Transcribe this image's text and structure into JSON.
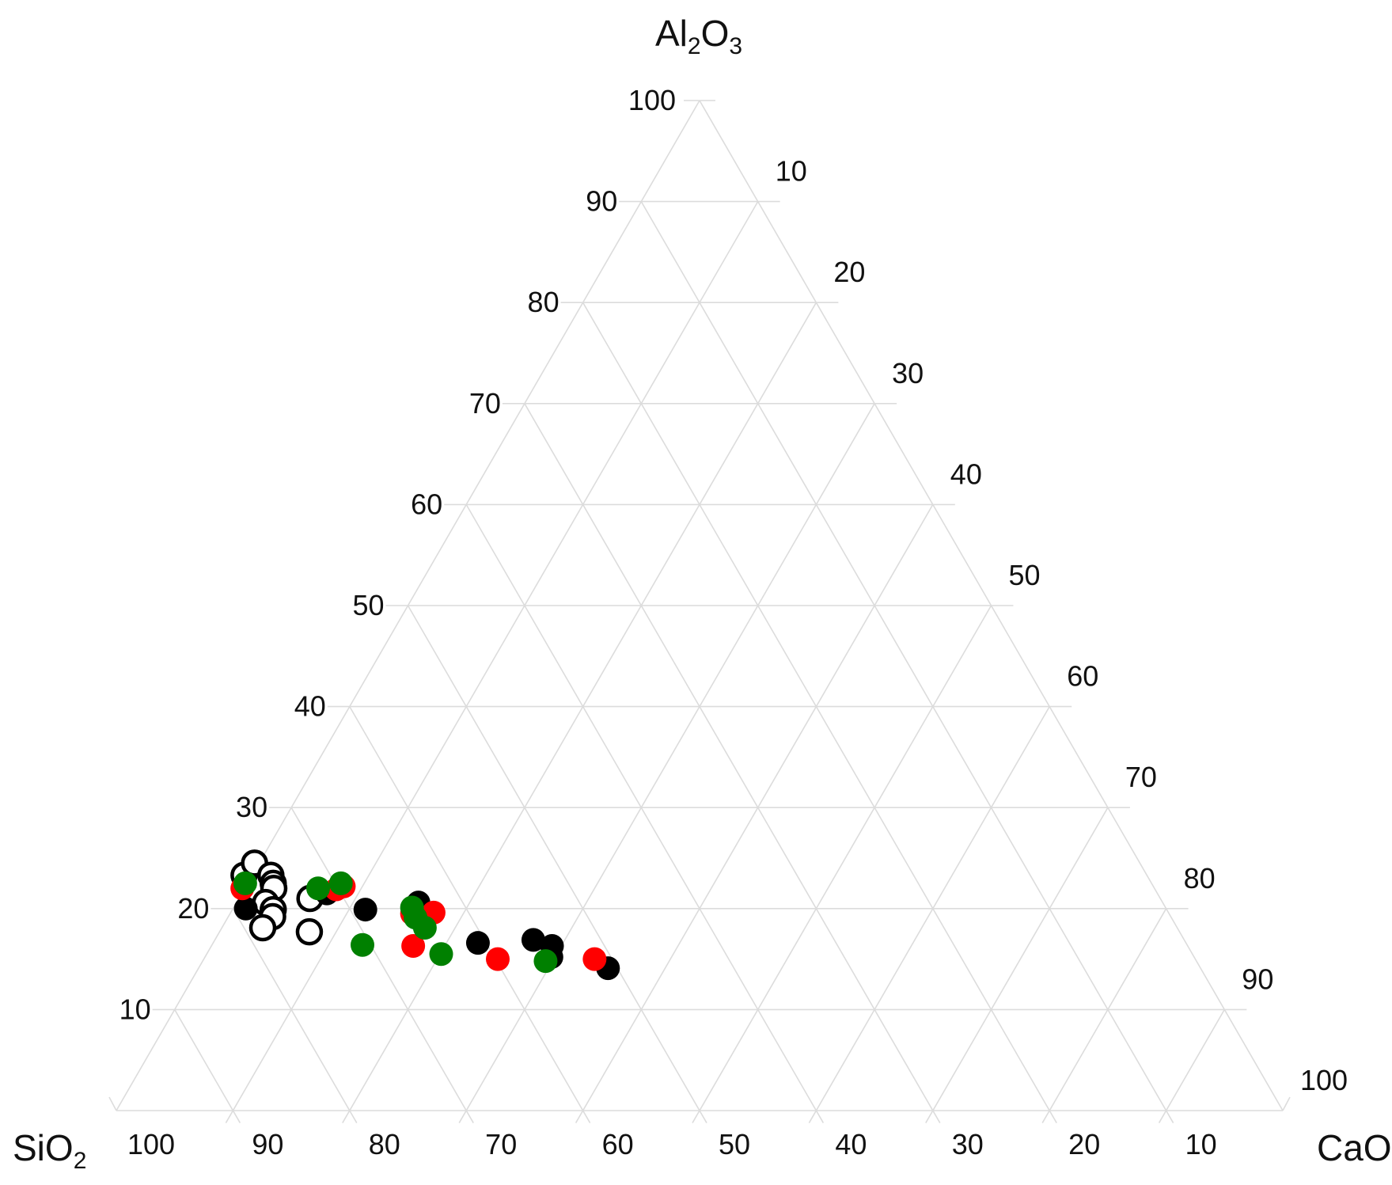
{
  "chart_data": {
    "type": "scatter",
    "subtype": "ternary",
    "apices": {
      "top": {
        "base": "Al",
        "sub1": "2",
        "mid": "O",
        "sub2": "3"
      },
      "left": {
        "base": "SiO",
        "sub1": "2"
      },
      "right": {
        "base": "CaO"
      }
    },
    "ticks": {
      "al2o3": [
        "10",
        "20",
        "30",
        "40",
        "50",
        "60",
        "70",
        "80",
        "90",
        "100"
      ],
      "cao_side": [
        "10",
        "20",
        "30",
        "40",
        "50",
        "60",
        "70",
        "80",
        "90",
        "100"
      ],
      "sio2_bottom": [
        "100",
        "90",
        "80",
        "70",
        "60",
        "50",
        "40",
        "30",
        "20",
        "10"
      ]
    },
    "range": [
      0,
      100
    ],
    "grid": true,
    "grid_step": 10,
    "legend": "none",
    "series": [
      {
        "style": "hollow",
        "color": "#000000",
        "points": [
          {
            "sio2": 77.4,
            "al2o3": 23.3,
            "cao": -0.7
          },
          {
            "sio2": 75.9,
            "al2o3": 24.5,
            "cao": -0.4
          },
          {
            "sio2": 75.1,
            "al2o3": 23.3,
            "cao": 1.6
          },
          {
            "sio2": 75.3,
            "al2o3": 22.5,
            "cao": 2.2
          },
          {
            "sio2": 75.5,
            "al2o3": 22.0,
            "cao": 2.5
          },
          {
            "sio2": 72.9,
            "al2o3": 21.0,
            "cao": 6.1
          },
          {
            "sio2": 76.9,
            "al2o3": 20.6,
            "cao": 2.5
          },
          {
            "sio2": 76.6,
            "al2o3": 19.9,
            "cao": 3.5
          },
          {
            "sio2": 77.0,
            "al2o3": 19.2,
            "cao": 3.8
          },
          {
            "sio2": 78.4,
            "al2o3": 18.1,
            "cao": 3.5
          },
          {
            "sio2": 74.6,
            "al2o3": 17.7,
            "cao": 7.7
          }
        ]
      },
      {
        "style": "filled",
        "color": "#000000",
        "points": [
          {
            "sio2": 78.9,
            "al2o3": 20.0,
            "cao": 1.1
          },
          {
            "sio2": 71.2,
            "al2o3": 21.5,
            "cao": 7.3
          },
          {
            "sio2": 68.7,
            "al2o3": 19.9,
            "cao": 11.4
          },
          {
            "sio2": 63.8,
            "al2o3": 20.6,
            "cao": 15.6
          },
          {
            "sio2": 60.7,
            "al2o3": 16.6,
            "cao": 22.7
          },
          {
            "sio2": 55.8,
            "al2o3": 16.9,
            "cao": 27.3
          },
          {
            "sio2": 54.5,
            "al2o3": 16.3,
            "cao": 29.2
          },
          {
            "sio2": 55.1,
            "al2o3": 15.2,
            "cao": 29.7
          },
          {
            "sio2": 50.8,
            "al2o3": 14.1,
            "cao": 35.1
          }
        ]
      },
      {
        "style": "filled",
        "color": "#ff0000",
        "points": [
          {
            "sio2": 78.2,
            "al2o3": 22.0,
            "cao": -0.2
          },
          {
            "sio2": 70.2,
            "al2o3": 21.9,
            "cao": 7.9
          },
          {
            "sio2": 69.4,
            "al2o3": 22.2,
            "cao": 8.4
          },
          {
            "sio2": 64.9,
            "al2o3": 19.5,
            "cao": 15.6
          },
          {
            "sio2": 63.0,
            "al2o3": 19.6,
            "cao": 17.4
          },
          {
            "sio2": 66.4,
            "al2o3": 16.3,
            "cao": 17.3
          },
          {
            "sio2": 59.8,
            "al2o3": 15.0,
            "cao": 25.2
          },
          {
            "sio2": 51.5,
            "al2o3": 15.0,
            "cao": 33.5
          }
        ]
      },
      {
        "style": "filled",
        "color": "#008000",
        "points": [
          {
            "sio2": 77.7,
            "al2o3": 22.5,
            "cao": -0.2
          },
          {
            "sio2": 71.7,
            "al2o3": 22.0,
            "cao": 6.3
          },
          {
            "sio2": 69.5,
            "al2o3": 22.5,
            "cao": 8.0
          },
          {
            "sio2": 70.7,
            "al2o3": 16.4,
            "cao": 12.9
          },
          {
            "sio2": 64.6,
            "al2o3": 20.1,
            "cao": 15.3
          },
          {
            "sio2": 64.8,
            "al2o3": 19.1,
            "cao": 16.1
          },
          {
            "sio2": 64.5,
            "al2o3": 18.1,
            "cao": 17.4
          },
          {
            "sio2": 64.4,
            "al2o3": 15.5,
            "cao": 20.1
          },
          {
            "sio2": 55.8,
            "al2o3": 14.8,
            "cao": 29.4
          }
        ]
      }
    ]
  }
}
